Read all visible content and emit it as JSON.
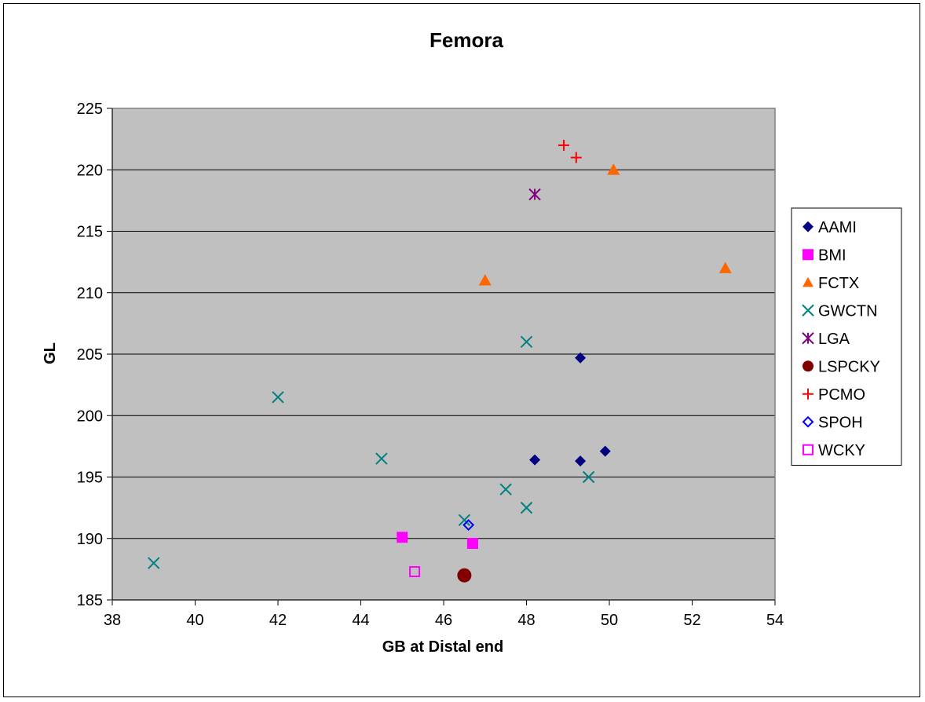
{
  "chart_data": {
    "type": "scatter",
    "title": "Femora",
    "xlabel": "GB at Distal end",
    "ylabel": "GL",
    "xlim": [
      38,
      54
    ],
    "ylim": [
      185,
      225
    ],
    "xticks": [
      "38",
      "40",
      "42",
      "44",
      "46",
      "48",
      "50",
      "52",
      "54"
    ],
    "yticks": [
      "185",
      "190",
      "195",
      "200",
      "205",
      "210",
      "215",
      "220",
      "225"
    ],
    "grid": "horizontal",
    "plot_background": "#c0c0c0",
    "legend_position": "right",
    "series": [
      {
        "name": "AAMI",
        "marker": "diamond",
        "color": "#000080",
        "points": [
          [
            49.3,
            204.7
          ],
          [
            48.2,
            196.4
          ],
          [
            49.3,
            196.3
          ],
          [
            49.9,
            197.1
          ]
        ]
      },
      {
        "name": "BMI",
        "marker": "square",
        "color": "#ff00ff",
        "points": [
          [
            45.0,
            190.1
          ],
          [
            46.7,
            189.6
          ]
        ]
      },
      {
        "name": "FCTX",
        "marker": "triangle",
        "color": "#ff6600",
        "points": [
          [
            47.0,
            211.0
          ],
          [
            50.1,
            220.0
          ],
          [
            52.8,
            212.0
          ]
        ]
      },
      {
        "name": "GWCTN",
        "marker": "x",
        "color": "#008080",
        "points": [
          [
            39.0,
            188.0
          ],
          [
            42.0,
            201.5
          ],
          [
            44.5,
            196.5
          ],
          [
            46.5,
            191.5
          ],
          [
            47.5,
            194.0
          ],
          [
            48.0,
            192.5
          ],
          [
            48.0,
            206.0
          ],
          [
            49.5,
            195.0
          ]
        ]
      },
      {
        "name": "LGA",
        "marker": "star",
        "color": "#800080",
        "points": [
          [
            48.2,
            218.0
          ]
        ]
      },
      {
        "name": "LSPCKY",
        "marker": "circle",
        "color": "#800000",
        "points": [
          [
            46.5,
            187.0
          ]
        ]
      },
      {
        "name": "PCMO",
        "marker": "plus",
        "color": "#ff0000",
        "points": [
          [
            48.9,
            222.0
          ],
          [
            49.2,
            221.0
          ]
        ]
      },
      {
        "name": "SPOH",
        "marker": "diamond-open",
        "color": "#0000ff",
        "points": [
          [
            46.6,
            191.1
          ]
        ]
      },
      {
        "name": "WCKY",
        "marker": "square-open",
        "color": "#ff00ff",
        "points": [
          [
            45.3,
            187.3
          ]
        ]
      }
    ]
  }
}
